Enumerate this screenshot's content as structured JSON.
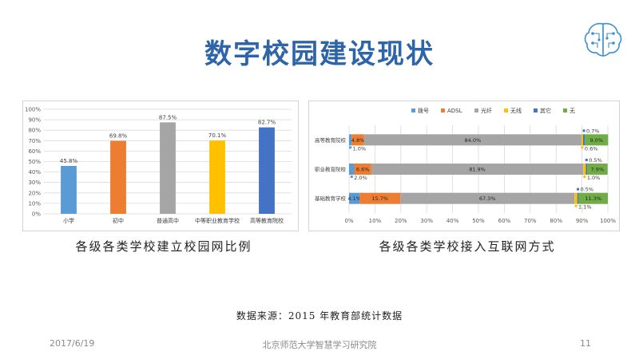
{
  "slide": {
    "title": "数字校园建设现状",
    "caption_left": "各级各类学校建立校园网比例",
    "caption_right": "各级各类学校接入互联网方式",
    "source": "数据来源：2015 年教育部统计数据",
    "footer_date": "2017/6/19",
    "footer_org": "北京师范大学智慧学习研究院",
    "footer_page": "11"
  },
  "chart_data": [
    {
      "type": "bar",
      "categories": [
        "小学",
        "初中",
        "普通高中",
        "中等职业教育学校",
        "高等教育院校"
      ],
      "values": [
        45.8,
        69.8,
        87.5,
        70.1,
        82.7
      ],
      "value_labels": [
        "45.8%",
        "69.8%",
        "87.5%",
        "70.1%",
        "82.7%"
      ],
      "colors": [
        "#5b9bd5",
        "#ed7d31",
        "#a5a5a5",
        "#ffc000",
        "#4472c4"
      ],
      "ylim": [
        0,
        100
      ],
      "yticks": [
        "0%",
        "10%",
        "20%",
        "30%",
        "40%",
        "50%",
        "60%",
        "70%",
        "80%",
        "90%",
        "100%"
      ],
      "grid": true
    },
    {
      "type": "bar",
      "orientation": "horizontal",
      "stacked": true,
      "legend_position": "top",
      "categories": [
        "高等教育院校",
        "职业教育院校",
        "基础教育学校"
      ],
      "series": [
        {
          "name": "拨号",
          "color": "#5b9bd5",
          "values": [
            1.0,
            2.0,
            4.1
          ],
          "labels": [
            "1.0%",
            "2.0%",
            "4.1%"
          ]
        },
        {
          "name": "ADSL",
          "color": "#ed7d31",
          "values": [
            4.8,
            6.6,
            15.7
          ],
          "labels": [
            "4.8%",
            "6.6%",
            "15.7%"
          ]
        },
        {
          "name": "光纤",
          "color": "#a5a5a5",
          "values": [
            84.0,
            81.9,
            67.3
          ],
          "labels": [
            "84.0%",
            "81.9%",
            "67.3%"
          ]
        },
        {
          "name": "无线",
          "color": "#ffc000",
          "values": [
            0.6,
            1.0,
            1.1
          ],
          "labels": [
            "0.6%",
            "1.0%",
            "1.1%"
          ]
        },
        {
          "name": "其它",
          "color": "#4472c4",
          "values": [
            0.7,
            0.5,
            0.5
          ],
          "labels": [
            "0.7%",
            "0.5%",
            "0.5%"
          ]
        },
        {
          "name": "无",
          "color": "#70ad47",
          "values": [
            9.0,
            7.9,
            11.3
          ],
          "labels": [
            "9.0%",
            "7.9%",
            "11.3%"
          ]
        }
      ],
      "xlim": [
        0,
        100
      ],
      "xticks": [
        "0%",
        "10%",
        "20%",
        "30%",
        "40%",
        "50%",
        "60%",
        "70%",
        "80%",
        "90%",
        "100%"
      ]
    }
  ]
}
